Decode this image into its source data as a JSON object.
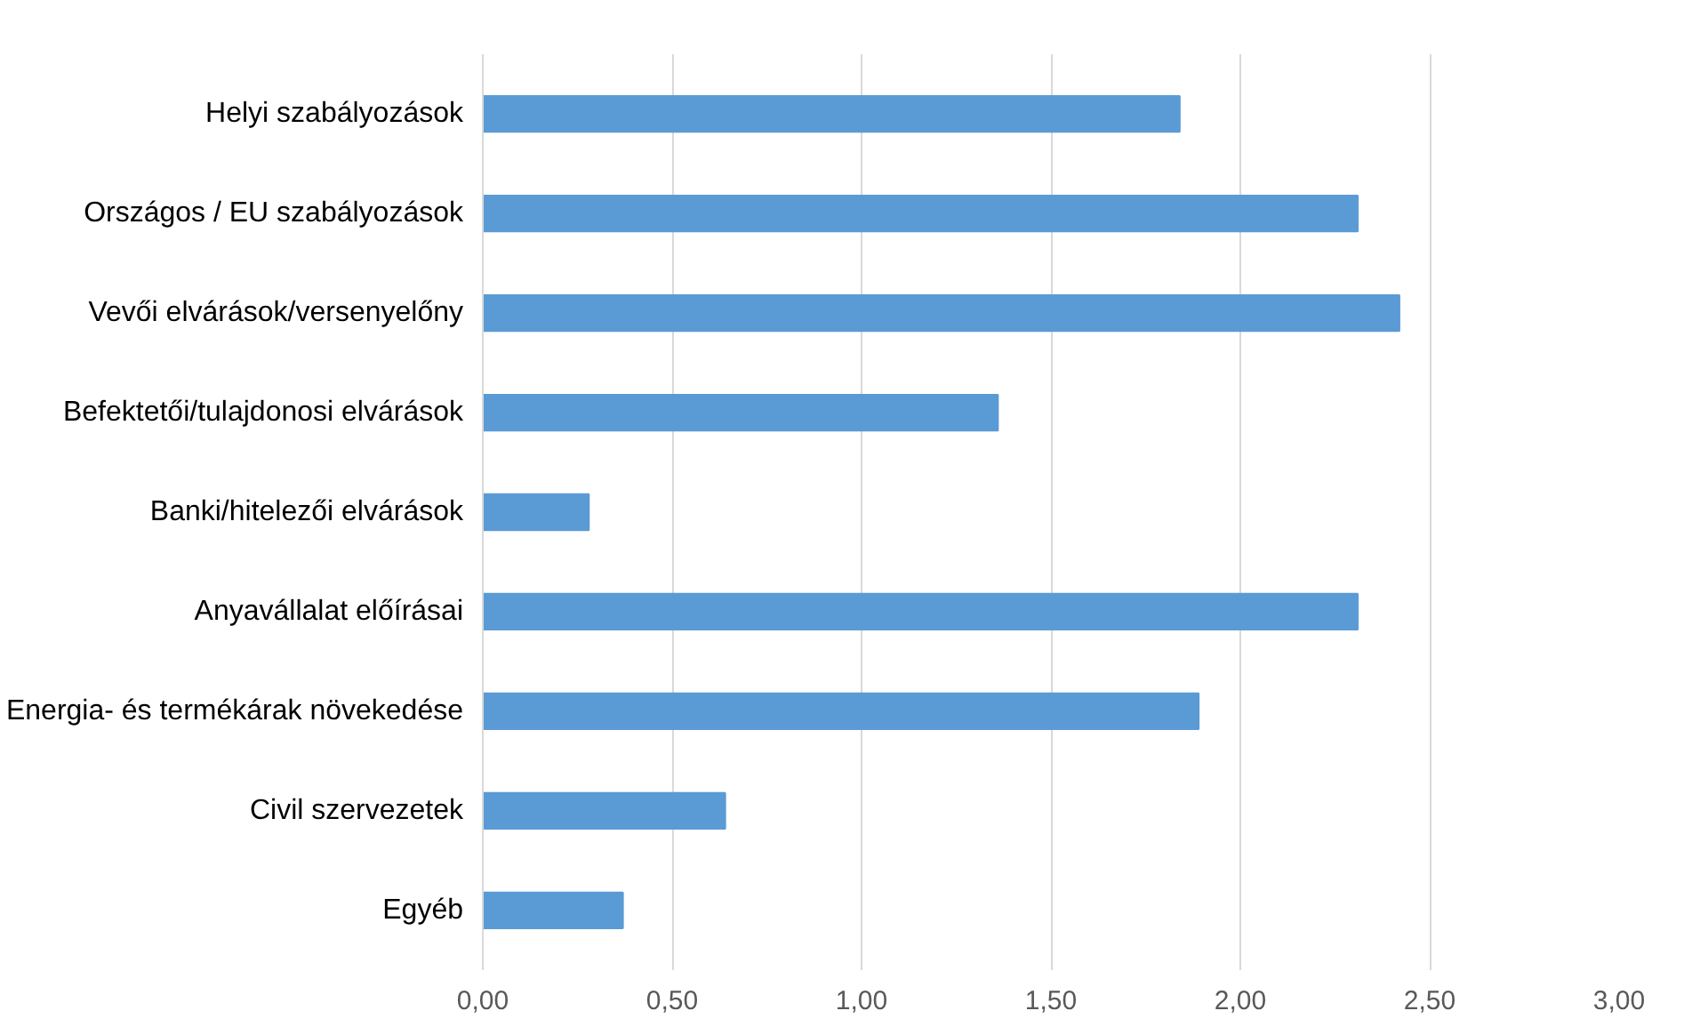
{
  "chart_data": {
    "type": "bar",
    "orientation": "horizontal",
    "categories": [
      "Helyi szabályozások",
      "Országos / EU szabályozások",
      "Vevői elvárások/versenyelőny",
      "Befektetői/tulajdonosi elvárások",
      "Banki/hitelezői elvárások",
      "Anyavállalat előírásai",
      "Energia- és termékárak növekedése",
      "Civil szervezetek",
      "Egyéb"
    ],
    "values": [
      1.84,
      2.31,
      2.42,
      1.36,
      0.28,
      2.31,
      1.89,
      0.64,
      0.37
    ],
    "color": "#5b9bd5",
    "xlim": [
      0,
      3
    ],
    "xticks": [
      {
        "value": 0,
        "label": "0,00"
      },
      {
        "value": 0.5,
        "label": "0,50"
      },
      {
        "value": 1,
        "label": "1,00"
      },
      {
        "value": 1.5,
        "label": "1,50"
      },
      {
        "value": 2,
        "label": "2,00"
      },
      {
        "value": 2.5,
        "label": "2,50"
      },
      {
        "value": 3,
        "label": "3,00"
      }
    ],
    "grid": "x"
  }
}
